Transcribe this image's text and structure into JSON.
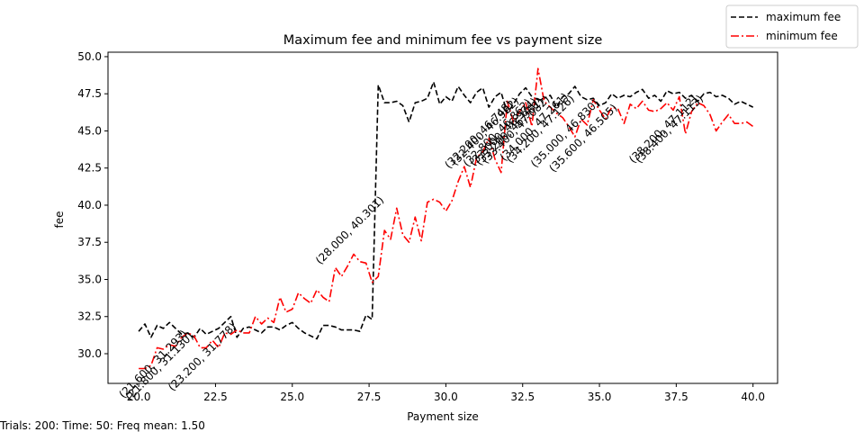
{
  "footnote": "Trials: 200: Time: 50: Freq mean: 1.50",
  "chart_data": {
    "type": "line",
    "title": "Maximum fee and minimum fee vs payment size",
    "xlabel": "Payment size",
    "ylabel": "fee",
    "xlim": [
      19.0,
      40.8
    ],
    "ylim": [
      28.0,
      50.3
    ],
    "xticks": [
      20.0,
      22.5,
      25.0,
      27.5,
      30.0,
      32.5,
      35.0,
      37.5,
      40.0
    ],
    "xtick_labels": [
      "20.0",
      "22.5",
      "25.0",
      "27.5",
      "30.0",
      "32.5",
      "35.0",
      "37.5",
      "40.0"
    ],
    "yticks": [
      30.0,
      32.5,
      35.0,
      37.5,
      40.0,
      42.5,
      45.0,
      47.5,
      50.0
    ],
    "ytick_labels": [
      "30.0",
      "32.5",
      "35.0",
      "37.5",
      "40.0",
      "42.5",
      "45.0",
      "47.5",
      "50.0"
    ],
    "legend_position": "top-right",
    "series": [
      {
        "name": "maximum fee",
        "color": "#000000",
        "style": "dashed",
        "x": [
          20.0,
          20.2,
          20.4,
          20.6,
          20.8,
          21.0,
          21.2,
          21.4,
          21.6,
          21.8,
          22.0,
          22.2,
          22.4,
          22.6,
          22.8,
          23.0,
          23.2,
          23.4,
          23.6,
          23.8,
          24.0,
          24.2,
          24.4,
          24.6,
          24.8,
          25.0,
          25.2,
          25.4,
          25.6,
          25.8,
          26.0,
          26.2,
          26.4,
          26.6,
          26.8,
          27.0,
          27.2,
          27.4,
          27.6,
          27.8,
          28.0,
          28.2,
          28.4,
          28.6,
          28.8,
          29.0,
          29.2,
          29.4,
          29.6,
          29.8,
          30.0,
          30.2,
          30.4,
          30.6,
          30.8,
          31.0,
          31.2,
          31.4,
          31.6,
          31.8,
          32.0,
          32.2,
          32.4,
          32.6,
          32.8,
          33.0,
          33.2,
          33.4,
          33.6,
          33.8,
          34.0,
          34.2,
          34.4,
          34.6,
          34.8,
          35.0,
          35.2,
          35.4,
          35.6,
          35.8,
          36.0,
          36.2,
          36.4,
          36.6,
          36.8,
          37.0,
          37.2,
          37.4,
          37.6,
          37.8,
          38.0,
          38.2,
          38.4,
          38.6,
          38.8,
          39.0,
          39.2,
          39.4,
          39.6,
          39.8,
          40.0
        ],
        "values": [
          31.5,
          32.0,
          31.1,
          31.9,
          31.7,
          32.1,
          31.7,
          31.3,
          31.4,
          31.1,
          31.7,
          31.3,
          31.5,
          31.7,
          32.1,
          32.5,
          31.1,
          31.7,
          31.8,
          31.6,
          31.4,
          31.8,
          31.8,
          31.6,
          31.9,
          32.1,
          31.7,
          31.4,
          31.2,
          31.0,
          31.9,
          31.9,
          31.8,
          31.6,
          31.6,
          31.6,
          31.5,
          32.6,
          32.3,
          48.1,
          46.9,
          46.9,
          47.0,
          46.7,
          45.6,
          46.9,
          47.0,
          47.2,
          48.3,
          46.8,
          47.3,
          47.0,
          48.0,
          47.4,
          46.9,
          47.6,
          47.9,
          46.6,
          47.3,
          47.6,
          46.2,
          46.8,
          47.5,
          47.9,
          47.3,
          47.1,
          47.2,
          47.4,
          46.6,
          47.3,
          47.5,
          48.0,
          47.3,
          47.1,
          47.2,
          46.7,
          46.9,
          47.5,
          47.2,
          47.4,
          47.3,
          47.6,
          47.8,
          47.2,
          47.4,
          47.0,
          47.7,
          47.5,
          47.6,
          47.2,
          47.4,
          47.0,
          47.5,
          47.6,
          47.3,
          47.4,
          47.2,
          46.8,
          47.0,
          46.8,
          46.6
        ]
      },
      {
        "name": "minimum fee",
        "color": "#ff0000",
        "style": "dashdot",
        "x": [
          20.0,
          20.2,
          20.4,
          20.6,
          20.8,
          21.0,
          21.2,
          21.4,
          21.6,
          21.8,
          22.0,
          22.2,
          22.4,
          22.6,
          22.8,
          23.0,
          23.2,
          23.4,
          23.6,
          23.8,
          24.0,
          24.2,
          24.4,
          24.6,
          24.8,
          25.0,
          25.2,
          25.4,
          25.6,
          25.8,
          26.0,
          26.2,
          26.4,
          26.6,
          26.8,
          27.0,
          27.2,
          27.4,
          27.6,
          27.8,
          28.0,
          28.2,
          28.4,
          28.6,
          28.8,
          29.0,
          29.2,
          29.4,
          29.6,
          29.8,
          30.0,
          30.2,
          30.4,
          30.6,
          30.8,
          31.0,
          31.2,
          31.4,
          31.6,
          31.8,
          32.0,
          32.2,
          32.4,
          32.6,
          32.8,
          33.0,
          33.2,
          33.4,
          33.6,
          33.8,
          34.0,
          34.2,
          34.4,
          34.6,
          34.8,
          35.0,
          35.2,
          35.4,
          35.6,
          35.8,
          36.0,
          36.2,
          36.4,
          36.6,
          36.8,
          37.0,
          37.2,
          37.4,
          37.6,
          37.8,
          38.0,
          38.2,
          38.4,
          38.6,
          38.8,
          39.0,
          39.2,
          39.4,
          39.6,
          39.8,
          40.0
        ],
        "values": [
          29.0,
          29.0,
          29.2,
          30.4,
          30.3,
          30.6,
          30.5,
          31.1,
          31.4,
          31.2,
          30.4,
          30.4,
          30.9,
          30.4,
          31.4,
          31.3,
          31.6,
          31.4,
          31.4,
          32.5,
          32.0,
          32.4,
          32.1,
          33.8,
          32.8,
          33.0,
          34.1,
          33.7,
          33.4,
          34.3,
          33.8,
          33.5,
          35.8,
          35.2,
          35.9,
          36.7,
          36.2,
          36.1,
          34.8,
          35.2,
          38.3,
          37.7,
          39.8,
          38.0,
          37.5,
          39.2,
          37.6,
          40.2,
          40.4,
          40.2,
          39.6,
          40.3,
          41.6,
          42.6,
          41.2,
          43.2,
          43.6,
          44.5,
          43.1,
          42.2,
          47.0,
          45.6,
          46.3,
          46.9,
          45.3,
          49.2,
          47.0,
          46.6,
          46.2,
          45.9,
          45.3,
          44.6,
          45.8,
          45.4,
          47.1,
          46.4,
          45.8,
          46.6,
          46.5,
          45.5,
          46.8,
          46.5,
          47.0,
          46.4,
          46.3,
          46.5,
          46.9,
          46.4,
          47.3,
          44.8,
          46.3,
          46.9,
          46.7,
          46.1,
          45.0,
          45.6,
          46.1,
          45.5,
          45.5,
          45.6,
          45.3
        ]
      }
    ],
    "annotations": [
      {
        "text": "(21.600, 31.293)",
        "x": 21.6,
        "y": 31.293
      },
      {
        "text": "(21.800, 31.130)",
        "x": 21.8,
        "y": 31.13
      },
      {
        "text": "(23.200, 31.778)",
        "x": 23.2,
        "y": 31.778
      },
      {
        "text": "(28.000, 40.301)",
        "x": 28.0,
        "y": 40.301
      },
      {
        "text": "(32.200, 46.748)",
        "x": 32.2,
        "y": 46.748
      },
      {
        "text": "(32.400, 46.962)",
        "x": 32.4,
        "y": 46.962
      },
      {
        "text": "(32.800, 46.862)",
        "x": 32.8,
        "y": 46.862
      },
      {
        "text": "(33.000, 46.924)",
        "x": 33.0,
        "y": 46.924
      },
      {
        "text": "(33.200, 46.961)",
        "x": 33.2,
        "y": 46.961
      },
      {
        "text": "(33.400, 47.082)",
        "x": 33.4,
        "y": 47.082
      },
      {
        "text": "(34.000, 47.261)",
        "x": 34.0,
        "y": 47.261
      },
      {
        "text": "(34.200, 47.126)",
        "x": 34.2,
        "y": 47.126
      },
      {
        "text": "(35.000, 46.830)",
        "x": 35.0,
        "y": 46.83
      },
      {
        "text": "(35.600, 46.505)",
        "x": 35.6,
        "y": 46.505
      },
      {
        "text": "(38.200, 47.112)",
        "x": 38.2,
        "y": 47.112
      },
      {
        "text": "(38.400, 47.113)",
        "x": 38.4,
        "y": 47.113
      }
    ]
  }
}
